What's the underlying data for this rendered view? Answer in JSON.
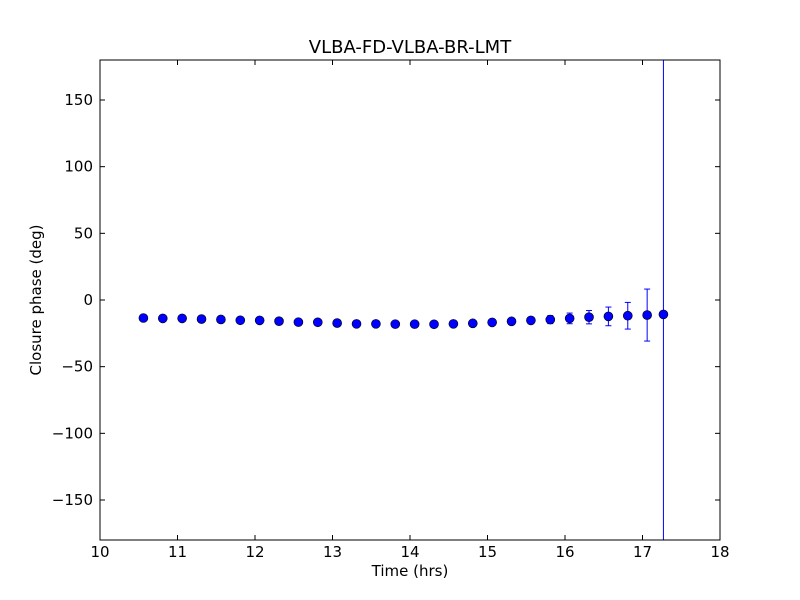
{
  "chart_data": {
    "type": "scatter",
    "title": "VLBA-FD-VLBA-BR-LMT",
    "xlabel": "Time (hrs)",
    "ylabel": "Closure phase (deg)",
    "xlim": [
      10,
      18
    ],
    "ylim": [
      -180,
      180
    ],
    "xticks": [
      10,
      11,
      12,
      13,
      14,
      15,
      16,
      17,
      18
    ],
    "yticks": [
      -150,
      -100,
      -50,
      0,
      50,
      100,
      150
    ],
    "xtick_labels": [
      "10",
      "11",
      "12",
      "13",
      "14",
      "15",
      "16",
      "17",
      "18"
    ],
    "ytick_labels": [
      "−150",
      "−100",
      "−50",
      "0",
      "50",
      "100",
      "150"
    ],
    "grid": false,
    "color": "#0000ff",
    "series": [
      {
        "x": [
          10.56,
          10.81,
          11.06,
          11.31,
          11.56,
          11.81,
          12.06,
          12.31,
          12.56,
          12.81,
          13.06,
          13.31,
          13.56,
          13.81,
          14.06,
          14.31,
          14.56,
          14.81,
          15.06,
          15.31,
          15.56,
          15.81,
          16.06,
          16.31,
          16.56,
          16.81,
          17.06,
          17.27
        ],
        "y": [
          -13.5,
          -13.8,
          -13.8,
          -14.3,
          -14.6,
          -15.2,
          -15.3,
          -15.9,
          -16.6,
          -16.7,
          -17.3,
          -17.9,
          -17.9,
          -18.1,
          -18.1,
          -18.2,
          -17.9,
          -17.5,
          -16.8,
          -16.0,
          -15.3,
          -14.7,
          -13.8,
          -12.9,
          -12.3,
          -11.8,
          -11.3,
          -10.8
        ],
        "yerr": [
          1.5,
          1.5,
          1.5,
          1.5,
          1.5,
          1.5,
          1.5,
          1.5,
          1.5,
          1.5,
          1.5,
          1.5,
          1.5,
          1.5,
          1.5,
          1.5,
          1.5,
          1.5,
          1.8,
          2.0,
          2.5,
          3.0,
          4.0,
          5.0,
          7.0,
          10.0,
          19.5,
          200
        ]
      }
    ]
  }
}
